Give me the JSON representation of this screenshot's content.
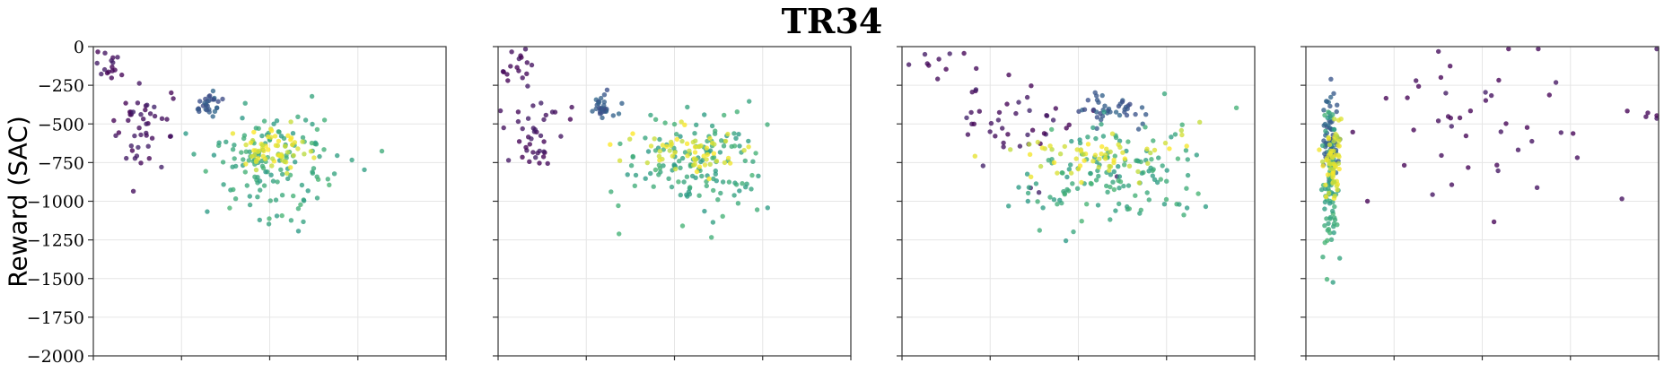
{
  "title": "TR34",
  "ylabel": "Reward (SAC)",
  "colors": {
    "viridis": [
      "#440154",
      "#3b528b",
      "#21908d",
      "#5dc963",
      "#fde725"
    ],
    "grid": "#e6e6e6",
    "axis": "#333333"
  },
  "chart_data": [
    {
      "type": "scatter",
      "ylim": [
        -2000,
        0
      ],
      "xlim": [
        0,
        1
      ],
      "yticks": [
        0,
        -250,
        -500,
        -750,
        -1000,
        -1250,
        -1500,
        -1750,
        -2000
      ],
      "ytick_labels": [
        "0",
        "−250",
        "−500",
        "−750",
        "−1000",
        "−1250",
        "−1500",
        "−1750",
        "−2000"
      ],
      "xtick_count": 4,
      "show_yticklabels": true,
      "grid": true,
      "clusters": [
        {
          "name": "c1",
          "color_value": 0.02,
          "center": [
            0.06,
            -120
          ],
          "spread": [
            0.03,
            60
          ],
          "count": 16
        },
        {
          "name": "c2",
          "color_value": 0.05,
          "center": [
            0.14,
            -550
          ],
          "spread": [
            0.05,
            120
          ],
          "count": 45
        },
        {
          "name": "c3",
          "color_value": 0.28,
          "center": [
            0.33,
            -390
          ],
          "spread": [
            0.02,
            35
          ],
          "count": 30
        },
        {
          "name": "c4",
          "color_value": 0.6,
          "center": [
            0.52,
            -760
          ],
          "spread": [
            0.09,
            170
          ],
          "count": 140
        },
        {
          "name": "c5",
          "color_value": 0.95,
          "center": [
            0.5,
            -660
          ],
          "spread": [
            0.06,
            80
          ],
          "count": 60
        }
      ]
    },
    {
      "type": "scatter",
      "ylim": [
        -2000,
        0
      ],
      "xlim": [
        0,
        1
      ],
      "yticks": [
        0,
        -250,
        -500,
        -750,
        -1000,
        -1250,
        -1500,
        -1750,
        -2000
      ],
      "ytick_labels": [
        "0",
        "−250",
        "−500",
        "−750",
        "−1000",
        "−1250",
        "−1500",
        "−1750",
        "−2000"
      ],
      "xtick_count": 4,
      "show_yticklabels": false,
      "grid": true,
      "clusters": [
        {
          "name": "c1",
          "color_value": 0.02,
          "center": [
            0.06,
            -120
          ],
          "spread": [
            0.03,
            60
          ],
          "count": 16
        },
        {
          "name": "c2",
          "color_value": 0.05,
          "center": [
            0.1,
            -550
          ],
          "spread": [
            0.04,
            120
          ],
          "count": 40
        },
        {
          "name": "c3",
          "color_value": 0.28,
          "center": [
            0.3,
            -390
          ],
          "spread": [
            0.02,
            35
          ],
          "count": 30
        },
        {
          "name": "c4",
          "color_value": 0.6,
          "center": [
            0.58,
            -780
          ],
          "spread": [
            0.1,
            170
          ],
          "count": 140
        },
        {
          "name": "c5",
          "color_value": 0.95,
          "center": [
            0.55,
            -680
          ],
          "spread": [
            0.08,
            80
          ],
          "count": 60
        }
      ]
    },
    {
      "type": "scatter",
      "ylim": [
        -2000,
        0
      ],
      "xlim": [
        0,
        1
      ],
      "yticks": [
        0,
        -250,
        -500,
        -750,
        -1000,
        -1250,
        -1500,
        -1750,
        -2000
      ],
      "ytick_labels": [
        "0",
        "−250",
        "−500",
        "−750",
        "−1000",
        "−1250",
        "−1500",
        "−1750",
        "−2000"
      ],
      "xtick_count": 4,
      "show_yticklabels": false,
      "grid": true,
      "clusters": [
        {
          "name": "c1",
          "color_value": 0.02,
          "center": [
            0.1,
            -100
          ],
          "spread": [
            0.05,
            50
          ],
          "count": 8
        },
        {
          "name": "c2",
          "color_value": 0.05,
          "center": [
            0.3,
            -520
          ],
          "spread": [
            0.1,
            150
          ],
          "count": 45
        },
        {
          "name": "c3",
          "color_value": 0.28,
          "center": [
            0.6,
            -400
          ],
          "spread": [
            0.04,
            50
          ],
          "count": 40
        },
        {
          "name": "c4",
          "color_value": 0.6,
          "center": [
            0.6,
            -820
          ],
          "spread": [
            0.12,
            170
          ],
          "count": 140
        },
        {
          "name": "c5",
          "color_value": 0.95,
          "center": [
            0.55,
            -720
          ],
          "spread": [
            0.12,
            80
          ],
          "count": 60
        }
      ]
    },
    {
      "type": "scatter",
      "ylim": [
        -2000,
        0
      ],
      "xlim": [
        0,
        1
      ],
      "yticks": [
        0,
        -250,
        -500,
        -750,
        -1000,
        -1250,
        -1500,
        -1750,
        -2000
      ],
      "ytick_labels": [
        "0",
        "−250",
        "−500",
        "−750",
        "−1000",
        "−1250",
        "−1500",
        "−1750",
        "−2000"
      ],
      "xtick_count": 4,
      "show_yticklabels": false,
      "grid": true,
      "clusters": [
        {
          "name": "c1",
          "color_value": 0.02,
          "center": [
            0.55,
            -450
          ],
          "spread": [
            0.25,
            250
          ],
          "count": 50
        },
        {
          "name": "c2",
          "color_value": 0.3,
          "center": [
            0.07,
            -600
          ],
          "spread": [
            0.01,
            180
          ],
          "count": 60
        },
        {
          "name": "c3",
          "color_value": 0.6,
          "center": [
            0.07,
            -900
          ],
          "spread": [
            0.01,
            230
          ],
          "count": 70
        },
        {
          "name": "c4",
          "color_value": 0.95,
          "center": [
            0.075,
            -740
          ],
          "spread": [
            0.012,
            130
          ],
          "count": 60
        }
      ]
    }
  ]
}
